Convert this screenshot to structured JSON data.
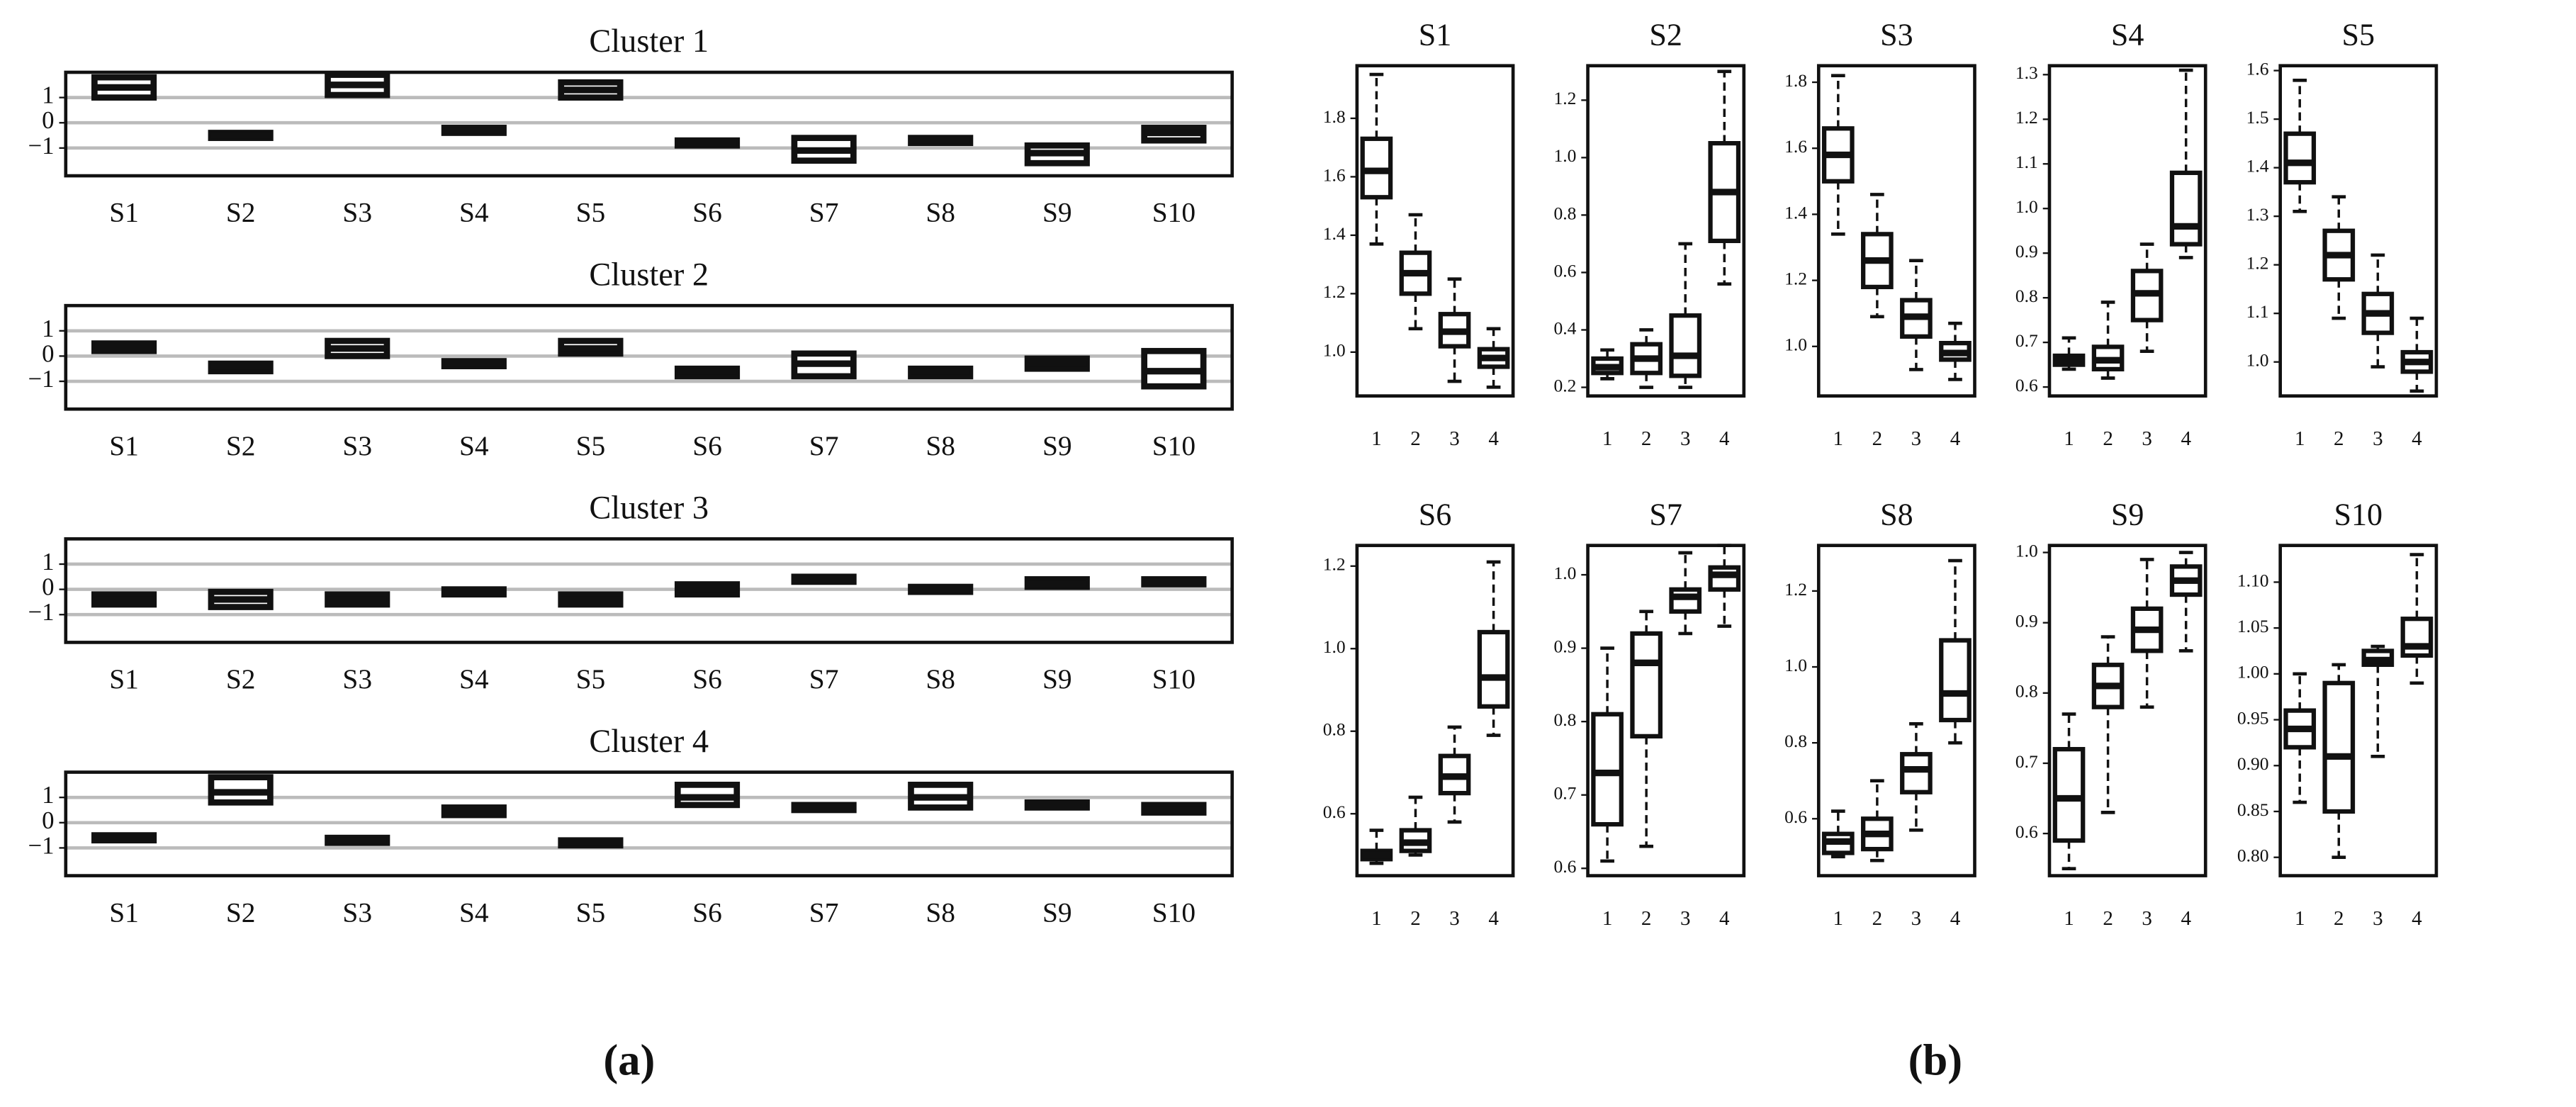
{
  "chart_data": [
    {
      "type": "box",
      "title": "Cluster 1",
      "categories": [
        "S1",
        "S2",
        "S3",
        "S4",
        "S5",
        "S6",
        "S7",
        "S8",
        "S9",
        "S10"
      ],
      "ylim": [
        -2.1,
        2.0
      ],
      "yticks": [
        1,
        0,
        {
          "value": -1,
          "label": "−1"
        }
      ],
      "grid": true,
      "boxes": [
        {
          "q1": 1.0,
          "median": 1.4,
          "q3": 1.8
        },
        {
          "q1": -0.6,
          "median": -0.5,
          "q3": -0.4
        },
        {
          "q1": 1.1,
          "median": 1.5,
          "q3": 1.9
        },
        {
          "q1": -0.4,
          "median": -0.3,
          "q3": -0.2
        },
        {
          "q1": 1.0,
          "median": 1.3,
          "q3": 1.6
        },
        {
          "q1": -0.9,
          "median": -0.8,
          "q3": -0.7
        },
        {
          "q1": -1.5,
          "median": -1.1,
          "q3": -0.6
        },
        {
          "q1": -0.8,
          "median": -0.7,
          "q3": -0.6
        },
        {
          "q1": -1.6,
          "median": -1.2,
          "q3": -0.9
        },
        {
          "q1": -0.7,
          "median": -0.4,
          "q3": -0.2
        }
      ]
    },
    {
      "type": "box",
      "title": "Cluster 2",
      "categories": [
        "S1",
        "S2",
        "S3",
        "S4",
        "S5",
        "S6",
        "S7",
        "S8",
        "S9",
        "S10"
      ],
      "ylim": [
        -2.1,
        2.0
      ],
      "yticks": [
        1,
        0,
        {
          "value": -1,
          "label": "−1"
        }
      ],
      "grid": true,
      "boxes": [
        {
          "q1": 0.2,
          "median": 0.4,
          "q3": 0.5
        },
        {
          "q1": -0.6,
          "median": -0.4,
          "q3": -0.3
        },
        {
          "q1": 0.0,
          "median": 0.3,
          "q3": 0.6
        },
        {
          "q1": -0.4,
          "median": -0.3,
          "q3": -0.2
        },
        {
          "q1": 0.1,
          "median": 0.3,
          "q3": 0.6
        },
        {
          "q1": -0.8,
          "median": -0.6,
          "q3": -0.5
        },
        {
          "q1": -0.8,
          "median": -0.3,
          "q3": 0.1
        },
        {
          "q1": -0.8,
          "median": -0.6,
          "q3": -0.5
        },
        {
          "q1": -0.5,
          "median": -0.3,
          "q3": -0.1
        },
        {
          "q1": -1.2,
          "median": -0.6,
          "q3": 0.2
        }
      ]
    },
    {
      "type": "box",
      "title": "Cluster 3",
      "categories": [
        "S1",
        "S2",
        "S3",
        "S4",
        "S5",
        "S6",
        "S7",
        "S8",
        "S9",
        "S10"
      ],
      "ylim": [
        -2.1,
        2.0
      ],
      "yticks": [
        1,
        0,
        {
          "value": -1,
          "label": "−1"
        }
      ],
      "grid": true,
      "boxes": [
        {
          "q1": -0.6,
          "median": -0.4,
          "q3": -0.2
        },
        {
          "q1": -0.7,
          "median": -0.4,
          "q3": -0.1
        },
        {
          "q1": -0.6,
          "median": -0.4,
          "q3": -0.2
        },
        {
          "q1": -0.2,
          "median": -0.1,
          "q3": 0.0
        },
        {
          "q1": -0.6,
          "median": -0.4,
          "q3": -0.2
        },
        {
          "q1": -0.2,
          "median": 0.0,
          "q3": 0.2
        },
        {
          "q1": 0.3,
          "median": 0.4,
          "q3": 0.5
        },
        {
          "q1": -0.1,
          "median": 0.0,
          "q3": 0.1
        },
        {
          "q1": 0.1,
          "median": 0.2,
          "q3": 0.4
        },
        {
          "q1": 0.2,
          "median": 0.3,
          "q3": 0.4
        }
      ]
    },
    {
      "type": "box",
      "title": "Cluster 4",
      "categories": [
        "S1",
        "S2",
        "S3",
        "S4",
        "S5",
        "S6",
        "S7",
        "S8",
        "S9",
        "S10"
      ],
      "ylim": [
        -2.1,
        2.0
      ],
      "yticks": [
        1,
        0,
        {
          "value": -1,
          "label": "−1"
        }
      ],
      "grid": true,
      "boxes": [
        {
          "q1": -0.7,
          "median": -0.6,
          "q3": -0.5
        },
        {
          "q1": 0.8,
          "median": 1.2,
          "q3": 1.8
        },
        {
          "q1": -0.8,
          "median": -0.7,
          "q3": -0.6
        },
        {
          "q1": 0.3,
          "median": 0.4,
          "q3": 0.6
        },
        {
          "q1": -0.9,
          "median": -0.8,
          "q3": -0.7
        },
        {
          "q1": 0.7,
          "median": 1.0,
          "q3": 1.5
        },
        {
          "q1": 0.5,
          "median": 0.6,
          "q3": 0.7
        },
        {
          "q1": 0.6,
          "median": 1.0,
          "q3": 1.5
        },
        {
          "q1": 0.6,
          "median": 0.7,
          "q3": 0.8
        },
        {
          "q1": 0.4,
          "median": 0.5,
          "q3": 0.7
        }
      ]
    },
    {
      "type": "box",
      "title": "S1",
      "categories": [
        "1",
        "2",
        "3",
        "4"
      ],
      "ylim": [
        0.85,
        1.98
      ],
      "yticks": [
        {
          "value": 1,
          "label": "1.0"
        },
        1.2,
        1.4,
        1.6,
        1.8
      ],
      "grid": false,
      "boxes": [
        {
          "low": 1.37,
          "q1": 1.53,
          "median": 1.62,
          "q3": 1.73,
          "high": 1.95
        },
        {
          "low": 1.08,
          "q1": 1.2,
          "median": 1.27,
          "q3": 1.34,
          "high": 1.47
        },
        {
          "low": 0.9,
          "q1": 1.02,
          "median": 1.07,
          "q3": 1.13,
          "high": 1.25
        },
        {
          "low": 0.88,
          "q1": 0.95,
          "median": 0.98,
          "q3": 1.01,
          "high": 1.08
        }
      ]
    },
    {
      "type": "box",
      "title": "S2",
      "categories": [
        "1",
        "2",
        "3",
        "4"
      ],
      "ylim": [
        0.17,
        1.32
      ],
      "yticks": [
        0.2,
        0.4,
        0.6,
        0.8,
        {
          "value": 1,
          "label": "1.0"
        },
        1.2
      ],
      "grid": false,
      "boxes": [
        {
          "low": 0.23,
          "q1": 0.25,
          "median": 0.27,
          "q3": 0.3,
          "high": 0.33
        },
        {
          "low": 0.2,
          "q1": 0.25,
          "median": 0.3,
          "q3": 0.35,
          "high": 0.4
        },
        {
          "low": 0.2,
          "q1": 0.24,
          "median": 0.31,
          "q3": 0.45,
          "high": 0.7
        },
        {
          "low": 0.56,
          "q1": 0.71,
          "median": 0.88,
          "q3": 1.05,
          "high": 1.3
        }
      ]
    },
    {
      "type": "box",
      "title": "S3",
      "categories": [
        "1",
        "2",
        "3",
        "4"
      ],
      "ylim": [
        0.85,
        1.85
      ],
      "yticks": [
        {
          "value": 1,
          "label": "1.0"
        },
        1.2,
        1.4,
        1.6,
        1.8
      ],
      "grid": false,
      "boxes": [
        {
          "low": 1.34,
          "q1": 1.5,
          "median": 1.58,
          "q3": 1.66,
          "high": 1.82
        },
        {
          "low": 1.09,
          "q1": 1.18,
          "median": 1.26,
          "q3": 1.34,
          "high": 1.46
        },
        {
          "low": 0.93,
          "q1": 1.03,
          "median": 1.09,
          "q3": 1.14,
          "high": 1.26
        },
        {
          "low": 0.9,
          "q1": 0.96,
          "median": 0.98,
          "q3": 1.01,
          "high": 1.07
        }
      ]
    },
    {
      "type": "box",
      "title": "S4",
      "categories": [
        "1",
        "2",
        "3",
        "4"
      ],
      "ylim": [
        0.58,
        1.32
      ],
      "yticks": [
        0.6,
        0.7,
        0.8,
        0.9,
        {
          "value": 1,
          "label": "1.0"
        },
        1.1,
        1.2,
        1.3
      ],
      "grid": false,
      "boxes": [
        {
          "low": 0.64,
          "q1": 0.65,
          "median": 0.66,
          "q3": 0.67,
          "high": 0.71
        },
        {
          "low": 0.62,
          "q1": 0.64,
          "median": 0.66,
          "q3": 0.69,
          "high": 0.79
        },
        {
          "low": 0.68,
          "q1": 0.75,
          "median": 0.81,
          "q3": 0.86,
          "high": 0.92
        },
        {
          "low": 0.89,
          "q1": 0.92,
          "median": 0.96,
          "q3": 1.08,
          "high": 1.31
        }
      ]
    },
    {
      "type": "box",
      "title": "S5",
      "categories": [
        "1",
        "2",
        "3",
        "4"
      ],
      "ylim": [
        0.93,
        1.61
      ],
      "yticks": [
        {
          "value": 1,
          "label": "1.0"
        },
        1.1,
        1.2,
        1.3,
        1.4,
        1.5,
        1.6
      ],
      "grid": false,
      "boxes": [
        {
          "low": 1.31,
          "q1": 1.37,
          "median": 1.41,
          "q3": 1.47,
          "high": 1.58
        },
        {
          "low": 1.09,
          "q1": 1.17,
          "median": 1.22,
          "q3": 1.27,
          "high": 1.34
        },
        {
          "low": 0.99,
          "q1": 1.06,
          "median": 1.1,
          "q3": 1.14,
          "high": 1.22
        },
        {
          "low": 0.94,
          "q1": 0.98,
          "median": 1.0,
          "q3": 1.02,
          "high": 1.09
        }
      ]
    },
    {
      "type": "box",
      "title": "S6",
      "categories": [
        "1",
        "2",
        "3",
        "4"
      ],
      "ylim": [
        0.45,
        1.25
      ],
      "yticks": [
        0.6,
        0.8,
        {
          "value": 1,
          "label": "1.0"
        },
        1.2
      ],
      "grid": false,
      "boxes": [
        {
          "low": 0.48,
          "q1": 0.49,
          "median": 0.5,
          "q3": 0.51,
          "high": 0.56
        },
        {
          "low": 0.5,
          "q1": 0.51,
          "median": 0.53,
          "q3": 0.56,
          "high": 0.64
        },
        {
          "low": 0.58,
          "q1": 0.65,
          "median": 0.69,
          "q3": 0.74,
          "high": 0.81
        },
        {
          "low": 0.79,
          "q1": 0.86,
          "median": 0.93,
          "q3": 1.04,
          "high": 1.21
        }
      ]
    },
    {
      "type": "box",
      "title": "S7",
      "categories": [
        "1",
        "2",
        "3",
        "4"
      ],
      "ylim": [
        0.59,
        1.04
      ],
      "yticks": [
        0.6,
        0.7,
        0.8,
        0.9,
        {
          "value": 1,
          "label": "1.0"
        }
      ],
      "grid": false,
      "boxes": [
        {
          "low": 0.61,
          "q1": 0.66,
          "median": 0.73,
          "q3": 0.81,
          "high": 0.9
        },
        {
          "low": 0.63,
          "q1": 0.78,
          "median": 0.88,
          "q3": 0.92,
          "high": 0.95
        },
        {
          "low": 0.92,
          "q1": 0.95,
          "median": 0.97,
          "q3": 0.98,
          "high": 1.03
        },
        {
          "low": 0.93,
          "q1": 0.98,
          "median": 1.0,
          "q3": 1.01,
          "high": 1.04
        }
      ]
    },
    {
      "type": "box",
      "title": "S8",
      "categories": [
        "1",
        "2",
        "3",
        "4"
      ],
      "ylim": [
        0.45,
        1.32
      ],
      "yticks": [
        0.6,
        0.8,
        {
          "value": 1,
          "label": "1.0"
        },
        1.2
      ],
      "grid": false,
      "boxes": [
        {
          "low": 0.5,
          "q1": 0.51,
          "median": 0.54,
          "q3": 0.56,
          "high": 0.62
        },
        {
          "low": 0.49,
          "q1": 0.52,
          "median": 0.56,
          "q3": 0.6,
          "high": 0.7
        },
        {
          "low": 0.57,
          "q1": 0.67,
          "median": 0.73,
          "q3": 0.77,
          "high": 0.85
        },
        {
          "low": 0.8,
          "q1": 0.86,
          "median": 0.93,
          "q3": 1.07,
          "high": 1.28
        }
      ]
    },
    {
      "type": "box",
      "title": "S9",
      "categories": [
        "1",
        "2",
        "3",
        "4"
      ],
      "ylim": [
        0.54,
        1.01
      ],
      "yticks": [
        0.6,
        0.7,
        0.8,
        0.9,
        {
          "value": 1,
          "label": "1.0"
        }
      ],
      "grid": false,
      "boxes": [
        {
          "low": 0.55,
          "q1": 0.59,
          "median": 0.65,
          "q3": 0.72,
          "high": 0.77
        },
        {
          "low": 0.63,
          "q1": 0.78,
          "median": 0.81,
          "q3": 0.84,
          "high": 0.88
        },
        {
          "low": 0.78,
          "q1": 0.86,
          "median": 0.89,
          "q3": 0.92,
          "high": 0.99
        },
        {
          "low": 0.86,
          "q1": 0.94,
          "median": 0.96,
          "q3": 0.98,
          "high": 1.0
        }
      ]
    },
    {
      "type": "box",
      "title": "S10",
      "categories": [
        "1",
        "2",
        "3",
        "4"
      ],
      "ylim": [
        0.78,
        1.14
      ],
      "yticks": [
        {
          "value": 0.8,
          "label": "0.80"
        },
        0.85,
        {
          "value": 0.9,
          "label": "0.90"
        },
        0.95,
        {
          "value": 1,
          "label": "1.00"
        },
        1.05,
        {
          "value": 1.1,
          "label": "1.10"
        }
      ],
      "grid": false,
      "boxes": [
        {
          "low": 0.86,
          "q1": 0.92,
          "median": 0.94,
          "q3": 0.96,
          "high": 1.0
        },
        {
          "low": 0.8,
          "q1": 0.85,
          "median": 0.91,
          "q3": 0.99,
          "high": 1.01
        },
        {
          "low": 0.91,
          "q1": 1.01,
          "median": 1.015,
          "q3": 1.025,
          "high": 1.03
        },
        {
          "low": 0.99,
          "q1": 1.02,
          "median": 1.03,
          "q3": 1.06,
          "high": 1.13
        }
      ]
    }
  ],
  "captions": [
    "(a)",
    "(b)"
  ]
}
